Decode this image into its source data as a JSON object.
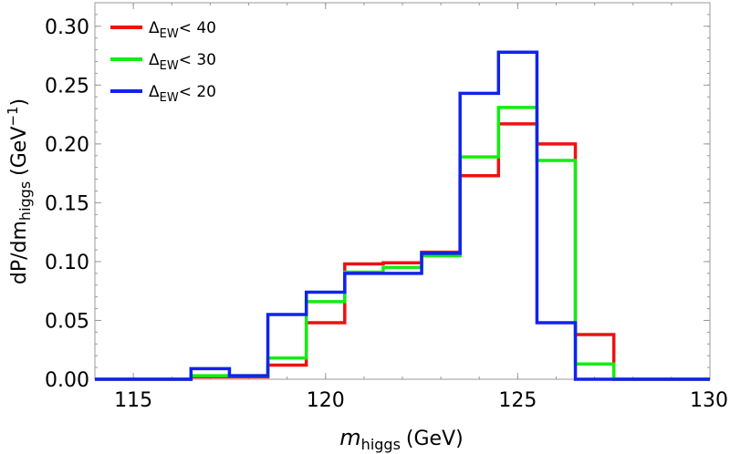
{
  "chart_data": {
    "type": "step",
    "xlabel": {
      "main": "m",
      "sub": "higgs",
      "unit": "(GeV)"
    },
    "ylabel": {
      "main": "dP/dm",
      "sub": "higgs",
      "unit_pre": "(GeV",
      "unit_sup": "−1",
      "unit_post": ")"
    },
    "xlim": [
      114,
      130
    ],
    "ylim": [
      0,
      0.32
    ],
    "xticks": [
      {
        "value": 115,
        "label": "115"
      },
      {
        "value": 120,
        "label": "120"
      },
      {
        "value": 125,
        "label": "125"
      },
      {
        "value": 130,
        "label": "130"
      }
    ],
    "yticks": [
      {
        "value": 0.0,
        "label": "0.00"
      },
      {
        "value": 0.05,
        "label": "0.05"
      },
      {
        "value": 0.1,
        "label": "0.10"
      },
      {
        "value": 0.15,
        "label": "0.15"
      },
      {
        "value": 0.2,
        "label": "0.20"
      },
      {
        "value": 0.25,
        "label": "0.25"
      },
      {
        "value": 0.3,
        "label": "0.30"
      }
    ],
    "bin_edges": [
      114,
      115.5,
      116.5,
      117.5,
      118.5,
      119.5,
      120.5,
      121.5,
      122.5,
      123.5,
      124.5,
      125.5,
      126.5,
      127.5,
      130
    ],
    "series": [
      {
        "name": "ΔEW< 40",
        "label_main": "Δ",
        "label_sub": "EW",
        "label_rest": "< 40",
        "color": "#ee1111",
        "values": [
          0.0,
          0.0,
          0.002,
          0.002,
          0.012,
          0.048,
          0.098,
          0.099,
          0.108,
          0.173,
          0.217,
          0.2,
          0.038,
          0.0
        ]
      },
      {
        "name": "ΔEW< 30",
        "label_main": "Δ",
        "label_sub": "EW",
        "label_rest": "< 30",
        "color": "#11ee11",
        "values": [
          0.0,
          0.0,
          0.003,
          0.003,
          0.018,
          0.066,
          0.091,
          0.095,
          0.105,
          0.189,
          0.231,
          0.186,
          0.013,
          0.0
        ]
      },
      {
        "name": "ΔEW< 20",
        "label_main": "Δ",
        "label_sub": "EW",
        "label_rest": "< 20",
        "color": "#1122ee",
        "values": [
          0.0,
          0.0,
          0.009,
          0.003,
          0.055,
          0.074,
          0.09,
          0.09,
          0.107,
          0.243,
          0.278,
          0.048,
          0.0,
          0.0
        ]
      }
    ]
  }
}
